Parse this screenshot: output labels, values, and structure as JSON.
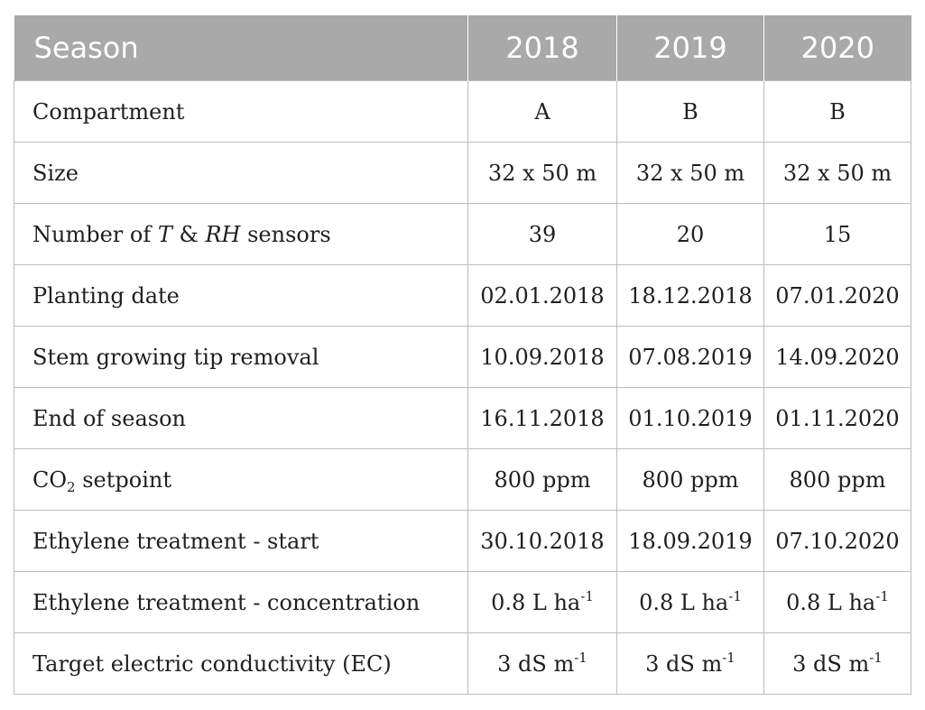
{
  "header": {
    "season": "Season",
    "years": [
      "2018",
      "2019",
      "2020"
    ]
  },
  "rows": [
    {
      "label": "Compartment",
      "values": [
        "A",
        "B",
        "B"
      ]
    },
    {
      "label": "Size",
      "values": [
        "32 x 50 m",
        "32 x 50 m",
        "32 x 50 m"
      ]
    },
    {
      "label_parts": {
        "pre": "Number of ",
        "t": "T",
        "amp": " & ",
        "rh": "RH",
        "post": " sensors"
      },
      "values": [
        "39",
        "20",
        "15"
      ]
    },
    {
      "label": "Planting date",
      "values": [
        "02.01.2018",
        "18.12.2018",
        "07.01.2020"
      ]
    },
    {
      "label": "Stem growing tip removal",
      "values": [
        "10.09.2018",
        "07.08.2019",
        "14.09.2020"
      ]
    },
    {
      "label": "End of season",
      "values": [
        "16.11.2018",
        "01.10.2019",
        "01.11.2020"
      ]
    },
    {
      "label_parts": {
        "base": "CO",
        "sub": "2",
        "post": " setpoint"
      },
      "values": [
        "800 ppm",
        "800 ppm",
        "800 ppm"
      ]
    },
    {
      "label": "Ethylene treatment - start",
      "values": [
        "30.10.2018",
        "18.09.2019",
        "07.10.2020"
      ]
    },
    {
      "label": "Ethylene treatment - concentration",
      "value_parts": {
        "base": "0.8 L ha",
        "sup": "-1"
      }
    },
    {
      "label": "Target electric conductivity (EC)",
      "value_parts": {
        "base": "3 dS m",
        "sup": "-1"
      }
    }
  ],
  "colors": {
    "header_bg": "#a9a9a9",
    "header_text": "#ffffff",
    "border": "#bcbcbc"
  }
}
